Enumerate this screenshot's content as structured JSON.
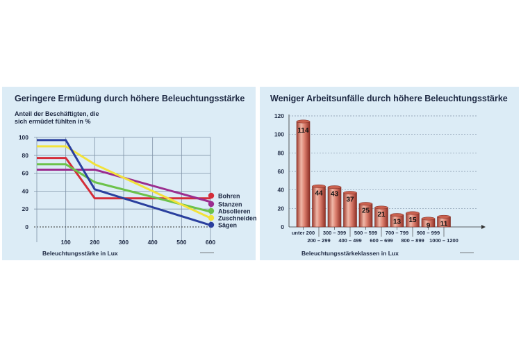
{
  "chart_data": [
    {
      "type": "line",
      "title": "Geringere Ermüdung durch höhere Beleuchtungsstärke",
      "ylabel_line1": "Anteil der Beschäftigten, die",
      "ylabel_line2": "sich ermüdet fühlten in %",
      "xlabel": "Beleuchtungsstärke in Lux",
      "x": [
        0,
        100,
        200,
        600
      ],
      "xlim": [
        0,
        600
      ],
      "ylim": [
        0,
        100
      ],
      "x_ticks": [
        "100",
        "200",
        "300",
        "400",
        "500",
        "600"
      ],
      "y_ticks": [
        "0",
        "20",
        "40",
        "60",
        "80",
        "100"
      ],
      "series": [
        {
          "name": "Bohren",
          "color": "#d42e3a",
          "values": [
            77,
            77,
            32,
            32
          ]
        },
        {
          "name": "Stanzen",
          "color": "#9b2d8f",
          "values": [
            64,
            64,
            64,
            28
          ]
        },
        {
          "name": "Absolieren",
          "color": "#6cc24a",
          "values": [
            70,
            70,
            50,
            17
          ]
        },
        {
          "name": "Zuschneiden",
          "color": "#f2e23a",
          "values": [
            90,
            90,
            70,
            10
          ]
        },
        {
          "name": "Sägen",
          "color": "#2a3f9e",
          "values": [
            97,
            97,
            42,
            2
          ]
        }
      ]
    },
    {
      "type": "bar",
      "title": "Weniger Arbeitsunfälle durch höhere Beleuchtungsstärke",
      "xlabel": "Beleuchtungsstärkeklassen in Lux",
      "ylim": [
        0,
        120
      ],
      "y_ticks": [
        "0",
        "20",
        "40",
        "60",
        "80",
        "100",
        "120"
      ],
      "categories": [
        "unter 200",
        "200 – 299",
        "300 – 399",
        "400 – 499",
        "500 – 599",
        "600 – 699",
        "700 – 799",
        "800 – 899",
        "900 – 999",
        "1000 – 1200"
      ],
      "values": [
        114,
        44,
        43,
        37,
        25,
        21,
        13,
        15,
        9,
        11
      ],
      "bar_color": "#d8796a"
    }
  ]
}
